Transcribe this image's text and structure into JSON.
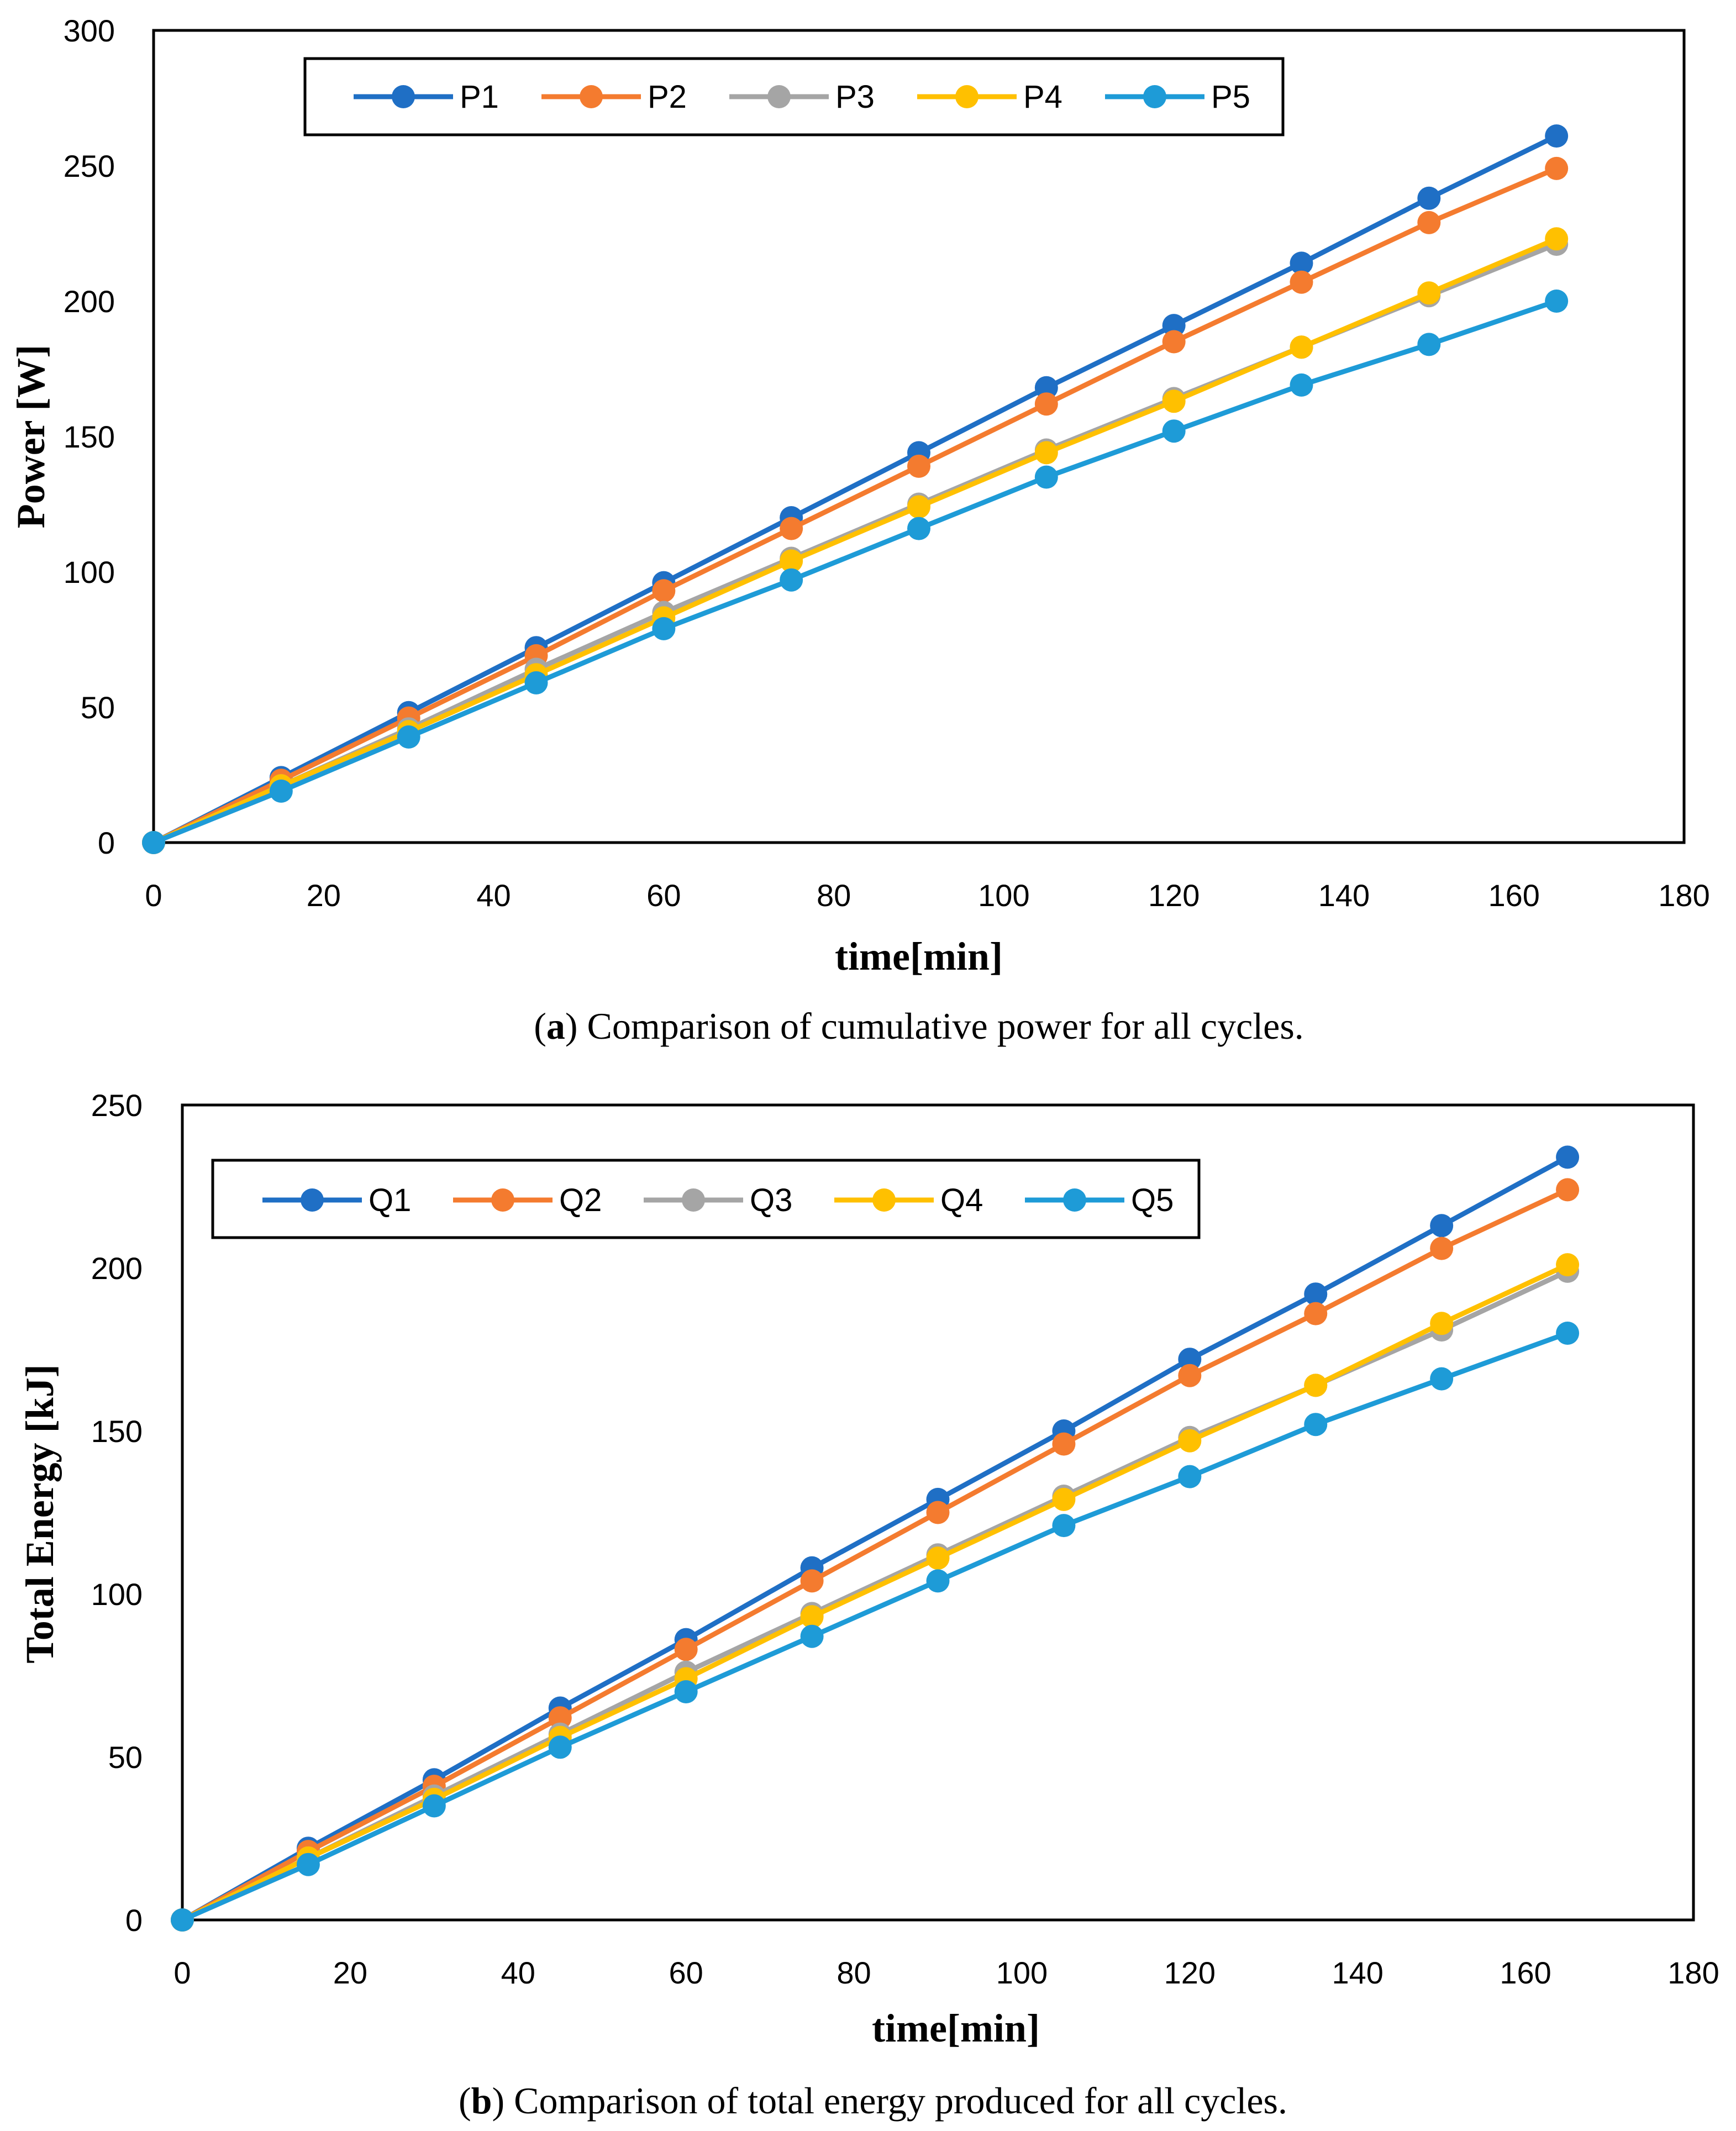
{
  "chart_data": [
    {
      "type": "line",
      "title": "",
      "xlabel": "time[min]",
      "ylabel": "Power [W]",
      "xlim": [
        0,
        180
      ],
      "ylim": [
        0,
        300
      ],
      "x_ticks": [
        0,
        20,
        40,
        60,
        80,
        100,
        120,
        140,
        160,
        180
      ],
      "y_ticks": [
        0,
        50,
        100,
        150,
        200,
        250,
        300
      ],
      "legend_position": "top-left",
      "caption_label": "a",
      "caption_text": "Comparison of cumulative power for all cycles.",
      "x": [
        0,
        15,
        30,
        45,
        60,
        75,
        90,
        105,
        120,
        135,
        150,
        165
      ],
      "series": [
        {
          "name": "P1",
          "color": "#1f6fc5",
          "values": [
            0,
            24,
            48,
            72,
            96,
            120,
            144,
            168,
            191,
            214,
            238,
            261
          ]
        },
        {
          "name": "P2",
          "color": "#f47b2f",
          "values": [
            0,
            23,
            46,
            69,
            93,
            116,
            139,
            162,
            185,
            207,
            229,
            249
          ]
        },
        {
          "name": "P3",
          "color": "#a5a5a5",
          "values": [
            0,
            21,
            42,
            64,
            85,
            105,
            125,
            145,
            164,
            183,
            202,
            221
          ]
        },
        {
          "name": "P4",
          "color": "#ffc000",
          "values": [
            0,
            21,
            41,
            62,
            83,
            104,
            124,
            144,
            163,
            183,
            203,
            223
          ]
        },
        {
          "name": "P5",
          "color": "#1e9bd7",
          "values": [
            0,
            19,
            39,
            59,
            79,
            97,
            116,
            135,
            152,
            169,
            184,
            200
          ]
        }
      ]
    },
    {
      "type": "line",
      "title": "",
      "xlabel": "time[min]",
      "ylabel": "Total Energy [kJ]",
      "xlim": [
        0,
        180
      ],
      "ylim": [
        0,
        250
      ],
      "x_ticks": [
        0,
        20,
        40,
        60,
        80,
        100,
        120,
        140,
        160,
        180
      ],
      "y_ticks": [
        0,
        50,
        100,
        150,
        200,
        250
      ],
      "legend_position": "top-left",
      "caption_label": "b",
      "caption_text": "Comparison of total energy produced for all cycles.",
      "x": [
        0,
        15,
        30,
        45,
        60,
        75,
        90,
        105,
        120,
        135,
        150,
        165
      ],
      "series": [
        {
          "name": "Q1",
          "color": "#1f6fc5",
          "values": [
            0,
            22,
            43,
            65,
            86,
            108,
            129,
            150,
            172,
            192,
            213,
            234
          ]
        },
        {
          "name": "Q2",
          "color": "#f47b2f",
          "values": [
            0,
            21,
            41,
            62,
            83,
            104,
            125,
            146,
            167,
            186,
            206,
            224
          ]
        },
        {
          "name": "Q3",
          "color": "#a5a5a5",
          "values": [
            0,
            19,
            38,
            57,
            76,
            94,
            112,
            130,
            148,
            164,
            181,
            199
          ]
        },
        {
          "name": "Q4",
          "color": "#ffc000",
          "values": [
            0,
            19,
            37,
            56,
            74,
            93,
            111,
            129,
            147,
            164,
            183,
            201
          ]
        },
        {
          "name": "Q5",
          "color": "#1e9bd7",
          "values": [
            0,
            17,
            35,
            53,
            70,
            87,
            104,
            121,
            136,
            152,
            166,
            180
          ]
        }
      ]
    }
  ]
}
